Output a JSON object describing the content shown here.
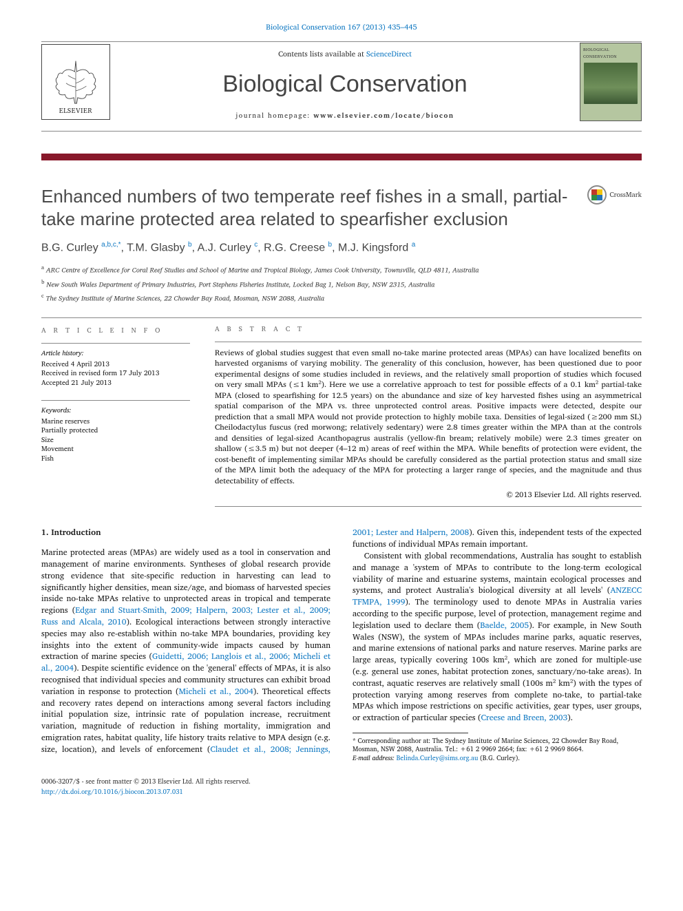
{
  "top_citation": "Biological Conservation 167 (2013) 435–445",
  "masthead": {
    "contents_prefix": "Contents lists available at ",
    "contents_link": "ScienceDirect",
    "journal": "Biological Conservation",
    "homepage_prefix": "journal homepage: ",
    "homepage_url": "www.elsevier.com/locate/biocon",
    "publisher": "ELSEVIER",
    "cover_label": "BIOLOGICAL CONSERVATION"
  },
  "colors": {
    "bar": "#88182a",
    "link": "#1179c2"
  },
  "crossmark_label": "CrossMark",
  "article": {
    "title": "Enhanced numbers of two temperate reef fishes in a small, partial-take marine protected area related to spearfisher exclusion",
    "authors_html": "B.G. Curley <sup>a,b,c,*</sup>, T.M. Glasby <sup>b</sup>, A.J. Curley <sup>c</sup>, R.G. Creese <sup>b</sup>, M.J. Kingsford <sup>a</sup>",
    "affiliations": [
      {
        "sup": "a",
        "text": "ARC Centre of Excellence for Coral Reef Studies and School of Marine and Tropical Biology, James Cook University, Townsville, QLD 4811, Australia"
      },
      {
        "sup": "b",
        "text": "New South Wales Department of Primary Industries, Port Stephens Fisheries Institute, Locked Bag 1, Nelson Bay, NSW 2315, Australia"
      },
      {
        "sup": "c",
        "text": "The Sydney Institute of Marine Sciences, 22 Chowder Bay Road, Mosman, NSW 2088, Australia"
      }
    ]
  },
  "info": {
    "heading": "A R T I C L E  I N F O",
    "history_label": "Article history:",
    "history": [
      "Received 4 April 2013",
      "Received in revised form 17 July 2013",
      "Accepted 21 July 2013"
    ],
    "keywords_label": "Keywords:",
    "keywords": [
      "Marine reserves",
      "Partially protected",
      "Size",
      "Movement",
      "Fish"
    ]
  },
  "abstract": {
    "heading": "A B S T R A C T",
    "text": "Reviews of global studies suggest that even small no-take marine protected areas (MPAs) can have localized benefits on harvested organisms of varying mobility. The generality of this conclusion, however, has been questioned due to poor experimental designs of some studies included in reviews, and the relatively small proportion of studies which focused on very small MPAs (≤1 km²). Here we use a correlative approach to test for possible effects of a 0.1 km² partial-take MPA (closed to spearfishing for 12.5 years) on the abundance and size of key harvested fishes using an asymmetrical spatial comparison of the MPA vs. three unprotected control areas. Positive impacts were detected, despite our prediction that a small MPA would not provide protection to highly mobile taxa. Densities of legal-sized (≥200 mm SL) Cheilodactylus fuscus (red morwong; relatively sedentary) were 2.8 times greater within the MPA than at the controls and densities of legal-sized Acanthopagrus australis (yellow-fin bream; relatively mobile) were 2.3 times greater on shallow (≤3.5 m) but not deeper (4–12 m) areas of reef within the MPA. While benefits of protection were evident, the cost-benefit of implementing similar MPAs should be carefully considered as the partial protection status and small size of the MPA limit both the adequacy of the MPA for protecting a larger range of species, and the magnitude and thus detectability of effects.",
    "copyright": "© 2013 Elsevier Ltd. All rights reserved."
  },
  "body": {
    "section_title": "1. Introduction",
    "p1_a": "Marine protected areas (MPAs) are widely used as a tool in conservation and management of marine environments. Syntheses of global research provide strong evidence that site-specific reduction in harvesting can lead to significantly higher densities, mean size/age, and biomass of harvested species inside no-take MPAs relative to unprotected areas in tropical and temperate regions (",
    "p1_ref1": "Edgar and Stuart-Smith, 2009; Halpern, 2003; Lester et al., 2009; Russ and Alcala, 2010",
    "p1_b": "). Ecological interactions between strongly interactive species may also re-establish within no-take MPA boundaries, providing key insights into the extent of community-wide impacts caused by human extraction of marine species (",
    "p1_ref2": "Guidetti, 2006; Langlois et al., 2006; Micheli et al., 2004",
    "p1_c": "). Despite scientific evidence on the 'general' effects of MPAs, it is also recognised that individual species and community structures can exhibit broad variation in response to protection (",
    "p1_ref3": "Micheli et al., 2004",
    "p1_d": "). Theoretical effects and recovery rates depend on interactions among several factors including initial population size, intrinsic rate of ",
    "p1_e": "population increase, recruitment variation, magnitude of reduction in fishing mortality, immigration and emigration rates, habitat quality, life history traits relative to MPA design (e.g. size, location), and levels of enforcement (",
    "p1_ref4": "Claudet et al., 2008; Jennings, 2001; Lester and Halpern, 2008",
    "p1_f": "). Given this, independent tests of the expected functions of individual MPAs remain important.",
    "p2_a": "Consistent with global recommendations, Australia has sought to establish and manage a 'system of MPAs to contribute to the long-term ecological viability of marine and estuarine systems, maintain ecological processes and systems, and protect Australia's biological diversity at all levels' (",
    "p2_ref1": "ANZECC TFMPA, 1999",
    "p2_b": "). The terminology used to denote MPAs in Australia varies according to the specific purpose, level of protection, management regime and legislation used to declare them (",
    "p2_ref2": "Baelde, 2005",
    "p2_c": "). For example, in New South Wales (NSW), the system of MPAs includes marine parks, aquatic reserves, and marine extensions of national parks and nature reserves. Marine parks are large areas, typically covering 100s km², which are zoned for multiple-use (e.g. general use zones, habitat protection zones, sanctuary/no-take areas). In contrast, aquatic reserves are relatively small (100s m² km²) with the types of protection varying among reserves from complete no-take, to partial-take MPAs which impose restrictions on specific activities, gear types, user groups, or extraction of particular species (",
    "p2_ref3": "Creese and Breen, 2003",
    "p2_d": ")."
  },
  "footnote": {
    "corr": "* Corresponding author at: The Sydney Institute of Marine Sciences, 22 Chowder Bay Road, Mosman, NSW 2088, Australia. Tel.: +61 2 9969 2664; fax: +61 2 9969 8664.",
    "email_label": "E-mail address:",
    "email": "Belinda.Curley@sims.org.au",
    "email_tail": "(B.G. Curley)."
  },
  "footer": {
    "left1": "0006-3207/$ - see front matter © 2013 Elsevier Ltd. All rights reserved.",
    "left2": "http://dx.doi.org/10.1016/j.biocon.2013.07.031"
  }
}
